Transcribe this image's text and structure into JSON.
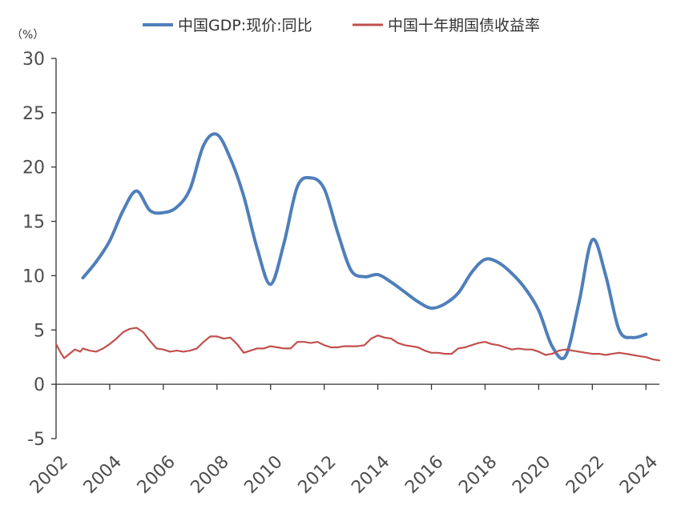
{
  "chart_data": {
    "type": "line",
    "title": "",
    "ylabel": "（%）",
    "xlabel": "",
    "ylim": [
      -5,
      30
    ],
    "yticks": [
      -5,
      0,
      5,
      10,
      15,
      20,
      25,
      30
    ],
    "xlim": [
      2002,
      2024.5
    ],
    "xticks": [
      2002,
      2004,
      2006,
      2008,
      2010,
      2012,
      2014,
      2016,
      2018,
      2020,
      2022,
      2024
    ],
    "grid": false,
    "legend": "top-center",
    "series": [
      {
        "name": "中国GDP:现价:同比",
        "color": "#4f7fba",
        "x": [
          2003.0,
          2003.5,
          2004.0,
          2004.5,
          2005.0,
          2005.5,
          2006.0,
          2006.5,
          2007.0,
          2007.5,
          2008.0,
          2008.5,
          2009.0,
          2009.5,
          2010.0,
          2010.5,
          2011.0,
          2011.5,
          2012.0,
          2012.5,
          2013.0,
          2013.5,
          2014.0,
          2014.5,
          2015.0,
          2015.5,
          2016.0,
          2016.5,
          2017.0,
          2017.5,
          2018.0,
          2018.5,
          2019.0,
          2019.5,
          2020.0,
          2020.5,
          2021.0,
          2021.5,
          2022.0,
          2022.5,
          2023.0,
          2023.5,
          2024.0
        ],
        "y": [
          9.8,
          11.3,
          13.2,
          16.0,
          17.8,
          16.0,
          15.8,
          16.3,
          18.0,
          22.0,
          23.0,
          20.8,
          17.3,
          12.5,
          9.2,
          13.0,
          18.2,
          19.0,
          18.0,
          14.0,
          10.5,
          9.9,
          10.1,
          9.4,
          8.5,
          7.6,
          7.0,
          7.4,
          8.4,
          10.3,
          11.5,
          11.2,
          10.2,
          8.8,
          6.8,
          3.5,
          2.6,
          7.5,
          13.3,
          10.0,
          5.0,
          4.3,
          4.6
        ]
      },
      {
        "name": "中国十年期国债收益率",
        "color": "#c0504d",
        "x": [
          2002.0,
          2002.15,
          2002.3,
          2002.5,
          2002.7,
          2002.9,
          2003.0,
          2003.25,
          2003.5,
          2003.75,
          2004.0,
          2004.25,
          2004.5,
          2004.75,
          2005.0,
          2005.25,
          2005.5,
          2005.75,
          2006.0,
          2006.25,
          2006.5,
          2006.75,
          2007.0,
          2007.25,
          2007.5,
          2007.75,
          2008.0,
          2008.25,
          2008.5,
          2008.75,
          2009.0,
          2009.25,
          2009.5,
          2009.75,
          2010.0,
          2010.25,
          2010.5,
          2010.75,
          2011.0,
          2011.25,
          2011.5,
          2011.75,
          2012.0,
          2012.25,
          2012.5,
          2012.75,
          2013.0,
          2013.25,
          2013.5,
          2013.75,
          2014.0,
          2014.25,
          2014.5,
          2014.75,
          2015.0,
          2015.25,
          2015.5,
          2015.75,
          2016.0,
          2016.25,
          2016.5,
          2016.75,
          2017.0,
          2017.25,
          2017.5,
          2017.75,
          2018.0,
          2018.25,
          2018.5,
          2018.75,
          2019.0,
          2019.25,
          2019.5,
          2019.75,
          2020.0,
          2020.25,
          2020.5,
          2020.75,
          2021.0,
          2021.25,
          2021.5,
          2021.75,
          2022.0,
          2022.25,
          2022.5,
          2022.75,
          2023.0,
          2023.25,
          2023.5,
          2023.75,
          2024.0,
          2024.25,
          2024.5
        ],
        "y": [
          3.7,
          3.0,
          2.4,
          2.8,
          3.2,
          3.0,
          3.3,
          3.1,
          3.0,
          3.3,
          3.7,
          4.2,
          4.8,
          5.1,
          5.2,
          4.8,
          4.0,
          3.3,
          3.2,
          3.0,
          3.1,
          3.0,
          3.1,
          3.3,
          3.9,
          4.4,
          4.4,
          4.2,
          4.3,
          3.7,
          2.9,
          3.1,
          3.3,
          3.3,
          3.5,
          3.4,
          3.3,
          3.3,
          3.9,
          3.9,
          3.8,
          3.9,
          3.6,
          3.4,
          3.4,
          3.5,
          3.5,
          3.5,
          3.6,
          4.2,
          4.5,
          4.3,
          4.2,
          3.8,
          3.6,
          3.5,
          3.4,
          3.1,
          2.9,
          2.9,
          2.8,
          2.8,
          3.3,
          3.4,
          3.6,
          3.8,
          3.9,
          3.7,
          3.6,
          3.4,
          3.2,
          3.3,
          3.2,
          3.2,
          3.0,
          2.7,
          2.8,
          3.1,
          3.2,
          3.1,
          3.0,
          2.9,
          2.8,
          2.8,
          2.7,
          2.8,
          2.9,
          2.8,
          2.7,
          2.6,
          2.5,
          2.3,
          2.2
        ]
      }
    ]
  }
}
